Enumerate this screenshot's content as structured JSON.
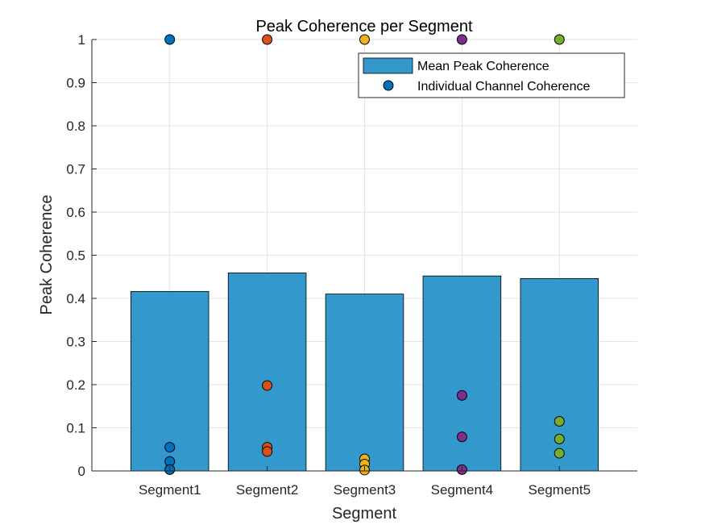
{
  "chart_data": {
    "type": "bar",
    "title": "Peak Coherence per Segment",
    "xlabel": "Segment",
    "ylabel": "Peak Coherence",
    "categories": [
      "Segment1",
      "Segment2",
      "Segment3",
      "Segment4",
      "Segment5"
    ],
    "ylim": [
      0,
      1
    ],
    "yticks": [
      "0",
      "0.1",
      "0.2",
      "0.3",
      "0.4",
      "0.5",
      "0.6",
      "0.7",
      "0.8",
      "0.9",
      "1"
    ],
    "grid": true,
    "legend_position": "top-right",
    "bar_series": {
      "name": "Mean Peak Coherence",
      "color": "#3399cc",
      "values": [
        0.416,
        0.459,
        0.41,
        0.452,
        0.446
      ]
    },
    "scatter_series": {
      "name": "Individual Channel Coherence",
      "colors": [
        "#0072bd",
        "#d95319",
        "#edb120",
        "#7e2f8e",
        "#77ac30"
      ],
      "points": [
        [
          1.0,
          0.055,
          0.022,
          0.003
        ],
        [
          1.0,
          0.198,
          0.055,
          0.045
        ],
        [
          1.0,
          0.028,
          0.016,
          0.002
        ],
        [
          1.0,
          0.175,
          0.079,
          0.003
        ],
        [
          1.0,
          0.115,
          0.074,
          0.041
        ]
      ]
    }
  }
}
